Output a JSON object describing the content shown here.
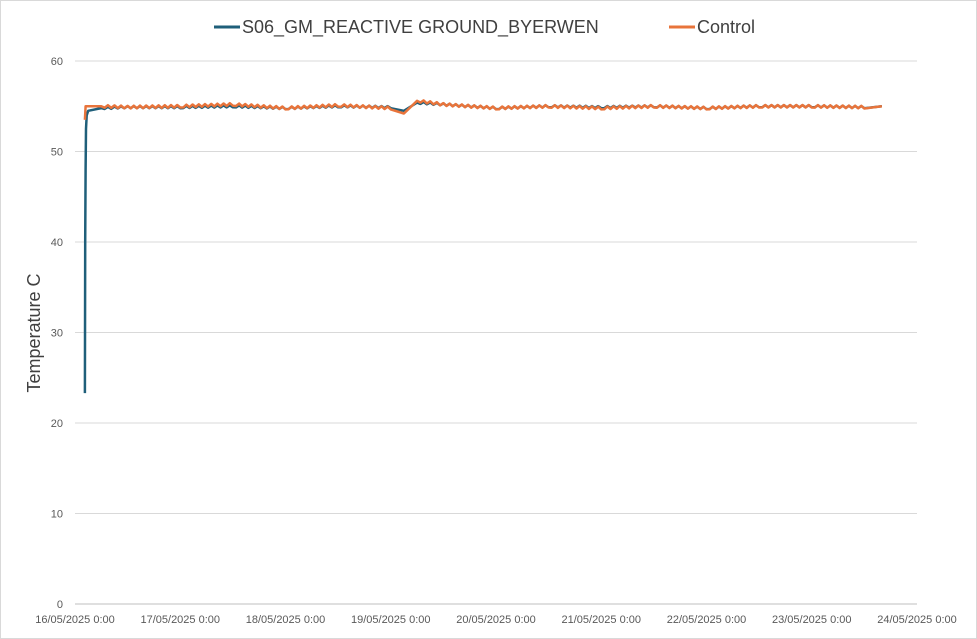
{
  "chart_data": {
    "type": "line",
    "title": "",
    "xlabel": "",
    "ylabel": "Temperature C",
    "ylim": [
      0,
      60
    ],
    "yticks": [
      0,
      10,
      20,
      30,
      40,
      50,
      60
    ],
    "xlim": [
      "16/05/2025 0:00",
      "24/05/2025 0:00"
    ],
    "xticks": [
      "16/05/2025 0:00",
      "17/05/2025 0:00",
      "18/05/2025 0:00",
      "19/05/2025 0:00",
      "20/05/2025 0:00",
      "21/05/2025 0:00",
      "22/05/2025 0:00",
      "23/05/2025 0:00",
      "24/05/2025 0:00"
    ],
    "grid": "horizontal",
    "legend_position": "top",
    "series": [
      {
        "name": "S06_GM_REACTIVE GROUND_BYERWEN",
        "color": "#1f5f7a",
        "points": [
          [
            "16/05/2025 2:15",
            23.3
          ],
          [
            "16/05/2025 2:20",
            40.0
          ],
          [
            "16/05/2025 2:25",
            48.0
          ],
          [
            "16/05/2025 2:30",
            52.5
          ],
          [
            "16/05/2025 2:40",
            54.0
          ],
          [
            "16/05/2025 3:00",
            54.5
          ],
          [
            "16/05/2025 6:00",
            54.8
          ],
          [
            "16/05/2025 12:00",
            54.9
          ],
          [
            "17/05/2025 0:00",
            54.9
          ],
          [
            "17/05/2025 12:00",
            55.0
          ],
          [
            "18/05/2025 0:00",
            54.8
          ],
          [
            "18/05/2025 12:00",
            55.0
          ],
          [
            "19/05/2025 0:00",
            54.9
          ],
          [
            "19/05/2025 3:00",
            54.5
          ],
          [
            "19/05/2025 6:00",
            55.4
          ],
          [
            "19/05/2025 12:00",
            55.2
          ],
          [
            "20/05/2025 0:00",
            54.8
          ],
          [
            "20/05/2025 12:00",
            55.0
          ],
          [
            "21/05/2025 0:00",
            54.9
          ],
          [
            "21/05/2025 12:00",
            55.0
          ],
          [
            "22/05/2025 0:00",
            54.8
          ],
          [
            "22/05/2025 12:00",
            55.0
          ],
          [
            "23/05/2025 0:00",
            55.0
          ],
          [
            "23/05/2025 12:00",
            54.9
          ],
          [
            "23/05/2025 16:00",
            55.0
          ]
        ]
      },
      {
        "name": "Control",
        "color": "#e8743b",
        "points": [
          [
            "16/05/2025 2:15",
            53.5
          ],
          [
            "16/05/2025 2:25",
            55.0
          ],
          [
            "16/05/2025 6:00",
            55.0
          ],
          [
            "16/05/2025 12:00",
            54.9
          ],
          [
            "17/05/2025 0:00",
            55.0
          ],
          [
            "17/05/2025 12:00",
            55.2
          ],
          [
            "18/05/2025 0:00",
            54.8
          ],
          [
            "18/05/2025 12:00",
            55.1
          ],
          [
            "19/05/2025 0:00",
            54.8
          ],
          [
            "19/05/2025 3:00",
            54.2
          ],
          [
            "19/05/2025 6:00",
            55.6
          ],
          [
            "19/05/2025 12:00",
            55.2
          ],
          [
            "20/05/2025 0:00",
            54.8
          ],
          [
            "20/05/2025 12:00",
            55.0
          ],
          [
            "21/05/2025 0:00",
            54.8
          ],
          [
            "21/05/2025 12:00",
            55.0
          ],
          [
            "22/05/2025 0:00",
            54.8
          ],
          [
            "22/05/2025 12:00",
            55.0
          ],
          [
            "23/05/2025 0:00",
            55.0
          ],
          [
            "23/05/2025 12:00",
            54.9
          ],
          [
            "23/05/2025 16:00",
            55.0
          ]
        ]
      }
    ]
  }
}
